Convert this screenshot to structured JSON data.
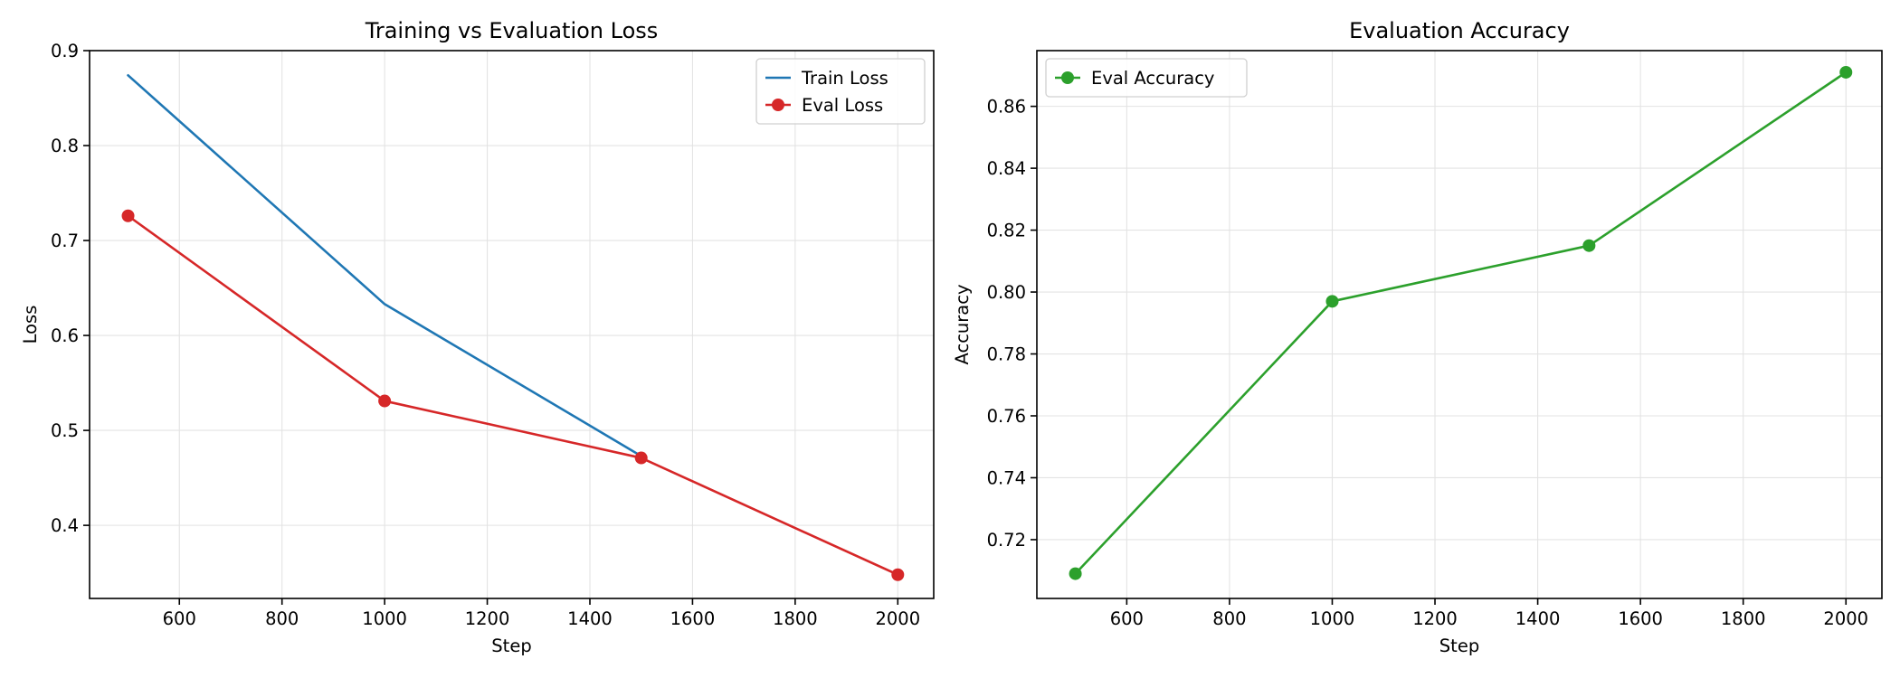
{
  "chart_data": [
    {
      "type": "line",
      "title": "Training vs Evaluation Loss",
      "xlabel": "Step",
      "ylabel": "Loss",
      "xlim": [
        425,
        2070
      ],
      "ylim": [
        0.323,
        0.9
      ],
      "xticks": [
        600,
        800,
        1000,
        1200,
        1400,
        1600,
        1800,
        2000
      ],
      "yticks": [
        0.4,
        0.5,
        0.6,
        0.7,
        0.8,
        0.9
      ],
      "ytick_decimals": 1,
      "grid": true,
      "legend": "top-right",
      "series": [
        {
          "name": "Train Loss",
          "color": "#1f77b4",
          "marker": false,
          "x": [
            500,
            1000,
            1500
          ],
          "y": [
            0.874,
            0.633,
            0.473
          ]
        },
        {
          "name": "Eval Loss",
          "color": "#d62728",
          "marker": true,
          "x": [
            500,
            1000,
            1500,
            2000
          ],
          "y": [
            0.726,
            0.531,
            0.471,
            0.348
          ]
        }
      ]
    },
    {
      "type": "line",
      "title": "Evaluation Accuracy",
      "xlabel": "Step",
      "ylabel": "Accuracy",
      "xlim": [
        425,
        2070
      ],
      "ylim": [
        0.701,
        0.878
      ],
      "xticks": [
        600,
        800,
        1000,
        1200,
        1400,
        1600,
        1800,
        2000
      ],
      "yticks": [
        0.72,
        0.74,
        0.76,
        0.78,
        0.8,
        0.82,
        0.84,
        0.86
      ],
      "ytick_decimals": 2,
      "grid": true,
      "legend": "top-left",
      "series": [
        {
          "name": "Eval Accuracy",
          "color": "#2ca02c",
          "marker": true,
          "x": [
            500,
            1000,
            1500,
            2000
          ],
          "y": [
            0.709,
            0.797,
            0.815,
            0.871
          ]
        }
      ]
    }
  ]
}
